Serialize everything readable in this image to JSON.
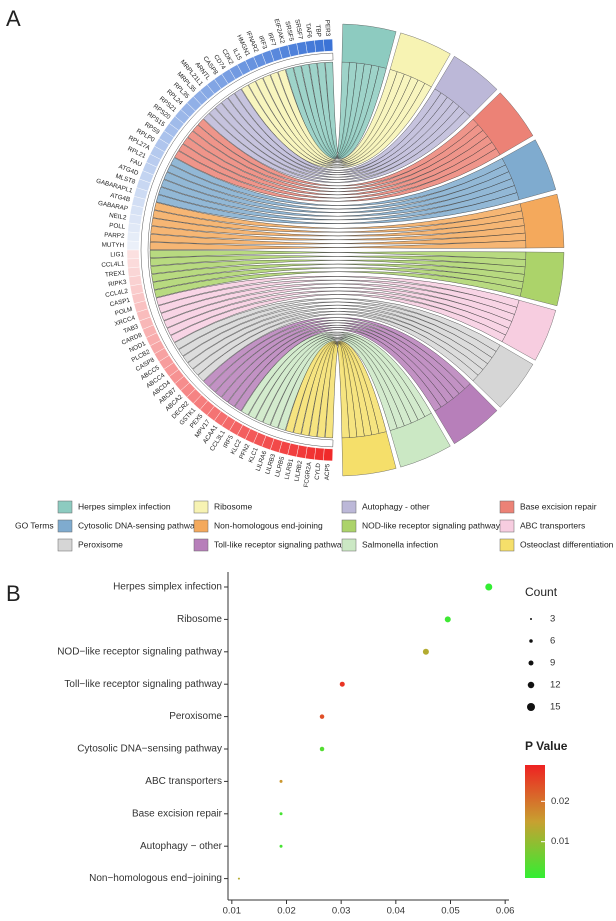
{
  "chart_data": [
    {
      "type": "chord",
      "panel_label": "A",
      "legend_title": "GO Terms",
      "genes": [
        "PER3",
        "TBP",
        "TAF6",
        "SRSF7",
        "SRSF5",
        "EIF2AK2",
        "IRF7",
        "IRF3",
        "IFNAR2",
        "HMGN1",
        "IL15",
        "CDK2",
        "CD74",
        "CASP8",
        "ARNTL",
        "MRPL21L1",
        "MRPL35",
        "RPL35",
        "RPL24",
        "RPS21",
        "RPS20",
        "RPS15",
        "RPS9",
        "RPLP0",
        "RPL27A",
        "RPL21",
        "FAU",
        "ATG4D",
        "MLST8",
        "GABARAPL1",
        "ATG4B",
        "GABARAP",
        "NEIL2",
        "POLL",
        "PARP2",
        "MUTYH",
        "LIG1",
        "CCL4L1",
        "TREX1",
        "RIPK3",
        "CCL4L2",
        "CASP1",
        "POLM",
        "XRCC4",
        "TAB3",
        "CARD8",
        "NOD1",
        "PLCB2",
        "CASP8",
        "ABCC5",
        "ABCC4",
        "ABCD4",
        "ABCB7",
        "ABCA2",
        "DECR2",
        "GSTK1",
        "PEX5",
        "MPV17",
        "ACAA1",
        "CCL3L1",
        "IRF5",
        "KLC2",
        "PFN2",
        "KLC1",
        "LILRA6",
        "LILRB3",
        "LILRB5",
        "LILRB1",
        "LILRB2",
        "FCGR2A",
        "CYLD",
        "ACP5"
      ],
      "terms": [
        {
          "name": "Herpes simplex infection",
          "color": "#8dcbc0"
        },
        {
          "name": "Ribosome",
          "color": "#f7f3b3"
        },
        {
          "name": "Autophagy - other",
          "color": "#bcb8d8"
        },
        {
          "name": "Base excision repair",
          "color": "#ec8276"
        },
        {
          "name": "Cytosolic DNA-sensing pathway",
          "color": "#7fabcf"
        },
        {
          "name": "Non-homologous end-joining",
          "color": "#f4a95c"
        },
        {
          "name": "NOD-like receptor signaling pathway",
          "color": "#acd36a"
        },
        {
          "name": "ABC transporters",
          "color": "#f7cde0"
        },
        {
          "name": "Peroxisome",
          "color": "#d6d6d6"
        },
        {
          "name": "Toll-like receptor signaling pathway",
          "color": "#b77fba"
        },
        {
          "name": "Salmonella infection",
          "color": "#cbe8c4"
        },
        {
          "name": "Osteoclast differentiation",
          "color": "#f5df6a"
        }
      ]
    },
    {
      "type": "dot",
      "panel_label": "B",
      "categories": [
        "Herpes simplex infection",
        "Ribosome",
        "NOD−like receptor signaling pathway",
        "Toll−like receptor signaling pathway",
        "Peroxisome",
        "Cytosolic DNA−sensing pathway",
        "ABC transporters",
        "Base excision repair",
        "Autophagy − other",
        "Non−homologous end−joining"
      ],
      "x": [
        0.057,
        0.0495,
        0.0455,
        0.0302,
        0.0265,
        0.0265,
        0.019,
        0.019,
        0.019,
        0.0113
      ],
      "size": [
        13,
        11,
        11,
        9,
        8,
        8,
        5,
        5,
        5,
        3
      ],
      "pvalue": [
        0.001,
        0.002,
        0.013,
        0.027,
        0.024,
        0.004,
        0.016,
        0.003,
        0.003,
        0.013
      ],
      "xlim": [
        0.0093,
        0.0607
      ],
      "xticks": [
        0.01,
        0.02,
        0.03,
        0.04,
        0.05,
        0.06
      ],
      "size_legend_title": "Count",
      "size_ticks": [
        3,
        6,
        9,
        12,
        15
      ],
      "color_legend_title": "P Value",
      "color_lim": [
        0.001,
        0.029
      ],
      "color_ticks": [
        0.01,
        0.02
      ],
      "color_scale": [
        "#33ee33",
        "#c8a030",
        "#ee2222"
      ]
    }
  ]
}
